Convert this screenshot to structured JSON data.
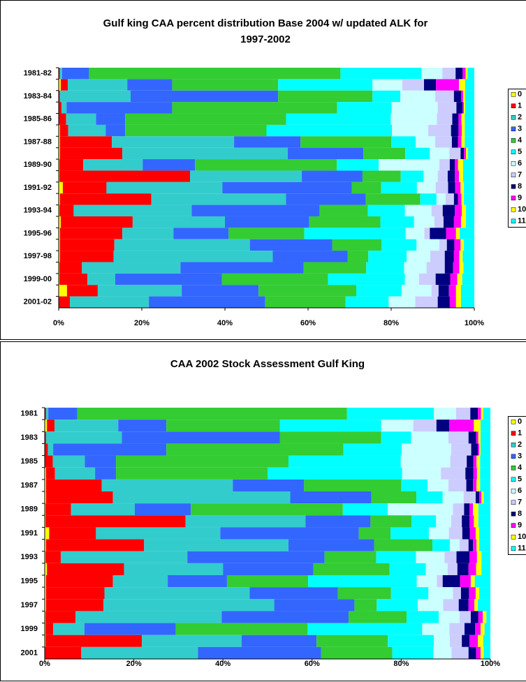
{
  "chart_data": [
    {
      "type": "bar",
      "orientation": "horizontal",
      "stacked": true,
      "title": "Gulf king CAA percent distribution Base 2004 w/ updated ALK for 1997-2002",
      "categories": [
        "1981-82",
        null,
        "1983-84",
        null,
        "1985-86",
        null,
        "1987-88",
        null,
        "1989-90",
        null,
        "1991-92",
        null,
        "1993-94",
        null,
        "1995-96",
        null,
        "1997-98",
        null,
        "1999-00",
        null,
        "2001-02"
      ],
      "xlim": [
        0,
        100
      ],
      "xticks": [
        {
          "value": 0,
          "label": "0%"
        },
        {
          "value": 20,
          "label": "20%"
        },
        {
          "value": 40,
          "label": "40%"
        },
        {
          "value": 60,
          "label": "60%"
        },
        {
          "value": 80,
          "label": "80%"
        },
        {
          "value": 100,
          "label": "100%"
        }
      ],
      "legend": "right",
      "series": [
        {
          "name": "0",
          "color": "#ffff00",
          "values": [
            0,
            0.5,
            0,
            0,
            0,
            0.3,
            0.3,
            0.3,
            0.2,
            0.2,
            1,
            0.3,
            0.2,
            0.5,
            0.3,
            0.3,
            0.3,
            0.2,
            0.2,
            2,
            0
          ]
        },
        {
          "name": "1",
          "color": "#ff0000",
          "values": [
            0.3,
            1.7,
            0.3,
            0.7,
            1.8,
            2,
            12.5,
            15,
            5.7,
            31.4,
            10.5,
            22,
            3.4,
            17.3,
            15,
            13.1,
            12.9,
            5.4,
            6.7,
            7.4,
            2.7
          ]
        },
        {
          "name": "2",
          "color": "#33cccc",
          "values": [
            0.5,
            14.3,
            17,
            1.2,
            7.2,
            9,
            29.4,
            39.8,
            14.3,
            26.9,
            27.9,
            32.4,
            28.4,
            22.2,
            12.3,
            32.6,
            38.3,
            23.7,
            6.7,
            20.2,
            19
          ]
        },
        {
          "name": "3",
          "color": "#3366ff",
          "values": [
            6.5,
            10.8,
            35.5,
            25.4,
            7,
            4.7,
            16,
            18.2,
            12.6,
            14.6,
            31.1,
            19.2,
            30.8,
            20.3,
            13.3,
            19.8,
            18,
            29.6,
            25.7,
            18.5,
            28
          ]
        },
        {
          "name": "4",
          "color": "#33cc33",
          "values": [
            60.5,
            25.5,
            22.7,
            39.7,
            38.7,
            34,
            21.8,
            10.1,
            34.1,
            9.2,
            7.1,
            13.1,
            11.6,
            17.1,
            18.2,
            11.9,
            5,
            15.1,
            25.5,
            23.5,
            19.3
          ]
        },
        {
          "name": "5",
          "color": "#00ffff",
          "values": [
            19.5,
            22.7,
            6.7,
            13.1,
            25.2,
            30.2,
            5.9,
            5.9,
            10.1,
            5.5,
            8.6,
            3.9,
            8.9,
            8.1,
            24.4,
            8.4,
            9.2,
            9.1,
            18.5,
            10.9,
            10.4
          ]
        },
        {
          "name": "6",
          "color": "#ccffff",
          "values": [
            5,
            7.2,
            8.4,
            11.1,
            11.1,
            8.7,
            4.7,
            4.7,
            14.6,
            3.4,
            4.5,
            2.2,
            6.4,
            4.9,
            4.5,
            5.5,
            5.7,
            5.4,
            3.4,
            7.2,
            6.4
          ]
        },
        {
          "name": "7",
          "color": "#ccccff",
          "values": [
            3.2,
            5.2,
            4.5,
            4.5,
            3.7,
            5.5,
            4,
            2.7,
            2.5,
            2.4,
            3,
            2,
            2.7,
            2.2,
            1.3,
            1.8,
            3.5,
            4.4,
            4,
            1.7,
            5.4
          ]
        },
        {
          "name": "8",
          "color": "#000080",
          "values": [
            1.7,
            2.9,
            1.7,
            1.5,
            1.5,
            1.8,
            1.5,
            0.8,
            1.2,
            1.7,
            1.7,
            1,
            2.9,
            2.5,
            3.9,
            1.8,
            2.2,
            2,
            3.5,
            2.5,
            2.9
          ]
        },
        {
          "name": "9",
          "color": "#ff00ff",
          "values": [
            0.7,
            5.5,
            0.5,
            0.3,
            0.7,
            0.8,
            0.8,
            0.5,
            0.8,
            1,
            1.3,
            0.8,
            1.7,
            1.7,
            2.4,
            1.5,
            1.3,
            1.5,
            1.7,
            1.7,
            1.5
          ]
        },
        {
          "name": "10",
          "color": "#ffff00",
          "values": [
            0.5,
            1.5,
            0.5,
            0.3,
            0.8,
            0.7,
            0.8,
            0.5,
            1.2,
            1,
            0.8,
            0.6,
            1,
            1.2,
            0.9,
            0.8,
            0.8,
            1,
            1.2,
            1.2,
            1.2
          ]
        },
        {
          "name": "11",
          "color": "#00ffff",
          "values": [
            1.6,
            2.2,
            2.2,
            2.2,
            2.3,
            2.3,
            2.3,
            1.5,
            2.7,
            2.7,
            2.5,
            2.5,
            2,
            2,
            3.5,
            2.5,
            2.8,
            2.6,
            2.9,
            3.2,
            3.2
          ]
        }
      ]
    },
    {
      "type": "bar",
      "orientation": "horizontal",
      "stacked": true,
      "title": "CAA 2002 Stock Assessment Gulf King",
      "categories": [
        "1981",
        null,
        "1983",
        null,
        "1985",
        null,
        "1987",
        null,
        "1989",
        null,
        "1991",
        null,
        "1993",
        null,
        "1995",
        null,
        "1997",
        null,
        "1999",
        null,
        "2001"
      ],
      "xlim": [
        0,
        100
      ],
      "xticks": [
        {
          "value": 0,
          "label": "0%"
        },
        {
          "value": 20,
          "label": "20%"
        },
        {
          "value": 40,
          "label": "40%"
        },
        {
          "value": 60,
          "label": "60%"
        },
        {
          "value": 80,
          "label": "80%"
        },
        {
          "value": 100,
          "label": "100%"
        }
      ],
      "legend": "right",
      "series": [
        {
          "name": "0",
          "color": "#ffff00",
          "values": [
            0,
            0.5,
            0,
            0,
            0,
            0.3,
            0.3,
            0.3,
            0.2,
            0.2,
            1,
            0.3,
            0.2,
            0.5,
            0.3,
            0.3,
            0.3,
            0.2,
            0.2,
            0.2,
            0
          ]
        },
        {
          "name": "1",
          "color": "#ff0000",
          "values": [
            0.3,
            1.7,
            0.3,
            0.7,
            1.8,
            2,
            12.5,
            15,
            5.7,
            31.4,
            10.5,
            22,
            3.4,
            17.3,
            15,
            13.1,
            12.9,
            6.7,
            1.7,
            21.6,
            8.2
          ]
        },
        {
          "name": "2",
          "color": "#33cccc",
          "values": [
            0.5,
            14.3,
            17,
            1.2,
            7.2,
            9,
            29.4,
            39.8,
            14.3,
            26.9,
            27.9,
            32.4,
            28.4,
            22.2,
            12.3,
            32.6,
            38.3,
            32.8,
            7,
            22.4,
            26.2
          ]
        },
        {
          "name": "3",
          "color": "#3366ff",
          "values": [
            6.5,
            10.8,
            35.5,
            25.4,
            7,
            4.7,
            16,
            18.2,
            12.6,
            14.6,
            31.1,
            19.2,
            30.8,
            20.3,
            13.3,
            19.8,
            18,
            28.5,
            20.5,
            16.8,
            27.6
          ]
        },
        {
          "name": "4",
          "color": "#33cc33",
          "values": [
            60.5,
            25.5,
            22.7,
            39.7,
            38.7,
            34,
            21.8,
            10.1,
            34.1,
            9.2,
            7.1,
            13.1,
            11.6,
            17.1,
            18.2,
            11.9,
            5,
            13,
            29.6,
            16,
            16
          ]
        },
        {
          "name": "5",
          "color": "#00ffff",
          "values": [
            19.5,
            22.7,
            6.7,
            13.1,
            25.2,
            30.2,
            5.9,
            5.9,
            10.1,
            5.5,
            8.6,
            3.9,
            8.9,
            8.1,
            24.4,
            8.4,
            9.2,
            7.2,
            25.7,
            10.3,
            9.2
          ]
        },
        {
          "name": "6",
          "color": "#ccffff",
          "values": [
            5,
            7.2,
            8.4,
            11.1,
            11.1,
            8.7,
            4.7,
            4.7,
            14.6,
            3.4,
            4.5,
            2.2,
            6.4,
            4.9,
            4.5,
            5.5,
            5.7,
            4.7,
            6.1,
            3.6,
            4.1
          ]
        },
        {
          "name": "7",
          "color": "#ccccff",
          "values": [
            3.2,
            5.2,
            4.5,
            4.5,
            3.7,
            5.5,
            4,
            2.7,
            2.5,
            2.4,
            3,
            2,
            2.7,
            2.2,
            1.3,
            1.8,
            3.5,
            2.5,
            3.4,
            2.7,
            3.8
          ]
        },
        {
          "name": "8",
          "color": "#000080",
          "values": [
            1.7,
            2.9,
            1.7,
            1.5,
            1.5,
            1.8,
            1.5,
            0.8,
            1.2,
            1.7,
            1.7,
            1,
            2.9,
            2.5,
            3.9,
            1.8,
            2.2,
            1.7,
            2.4,
            1.7,
            1.7
          ]
        },
        {
          "name": "9",
          "color": "#ff00ff",
          "values": [
            0.7,
            5.5,
            0.5,
            0.3,
            0.7,
            0.8,
            0.8,
            0.5,
            0.8,
            1,
            1.3,
            0.8,
            1.7,
            1.7,
            2.4,
            1.5,
            1.3,
            1,
            1.2,
            1.9,
            1
          ]
        },
        {
          "name": "10",
          "color": "#ffff00",
          "values": [
            0.5,
            1.5,
            0.5,
            0.3,
            0.8,
            0.7,
            0.8,
            0.5,
            1.2,
            1,
            0.8,
            0.6,
            1,
            1.2,
            0.9,
            0.8,
            0.8,
            0.8,
            0.9,
            1.2,
            0.7
          ]
        },
        {
          "name": "11",
          "color": "#00ffff",
          "values": [
            1.6,
            2.2,
            2.2,
            2.2,
            2.3,
            2.3,
            2.3,
            1.5,
            2.7,
            2.7,
            2.5,
            2.5,
            2,
            2,
            3.5,
            2.5,
            2.8,
            0.9,
            1.3,
            1.6,
            1.5
          ]
        }
      ]
    }
  ]
}
